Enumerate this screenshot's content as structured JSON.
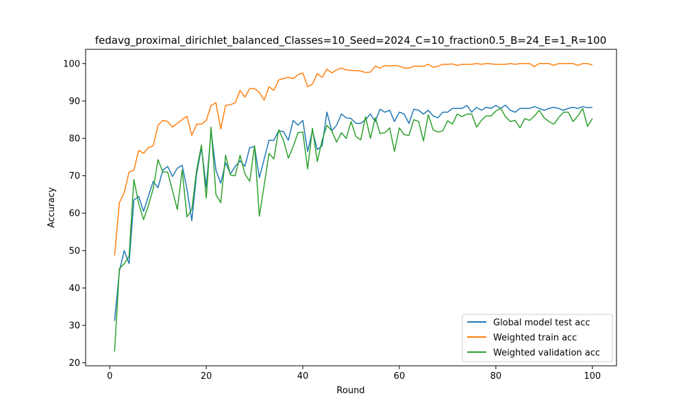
{
  "chart_data": {
    "type": "line",
    "title": "fedavg_proximal_dirichlet_balanced_Classes=10_Seed=2024_C=10_fraction0.5_B=24_E=1_R=100",
    "xlabel": "Round",
    "ylabel": "Accuracy",
    "xlim": [
      -5,
      105
    ],
    "ylim": [
      19.2,
      103.8
    ],
    "xticks": [
      0,
      20,
      40,
      60,
      80,
      100
    ],
    "yticks": [
      20,
      30,
      40,
      50,
      60,
      70,
      80,
      90,
      100
    ],
    "grid": false,
    "legend_position": "lower-right",
    "x": [
      1,
      2,
      3,
      4,
      5,
      6,
      7,
      8,
      9,
      10,
      11,
      12,
      13,
      14,
      15,
      16,
      17,
      18,
      19,
      20,
      21,
      22,
      23,
      24,
      25,
      26,
      27,
      28,
      29,
      30,
      31,
      32,
      33,
      34,
      35,
      36,
      37,
      38,
      39,
      40,
      41,
      42,
      43,
      44,
      45,
      46,
      47,
      48,
      49,
      50,
      51,
      52,
      53,
      54,
      55,
      56,
      57,
      58,
      59,
      60,
      61,
      62,
      63,
      64,
      65,
      66,
      67,
      68,
      69,
      70,
      71,
      72,
      73,
      74,
      75,
      76,
      77,
      78,
      79,
      80,
      81,
      82,
      83,
      84,
      85,
      86,
      87,
      88,
      89,
      90,
      91,
      92,
      93,
      94,
      95,
      96,
      97,
      98,
      99,
      100
    ],
    "series": [
      {
        "name": "Global model test acc",
        "color": "#1f77b4",
        "values": [
          31.2,
          44.5,
          50.0,
          46.5,
          63.5,
          64.5,
          60.5,
          64.5,
          68.5,
          66.8,
          71.5,
          72.5,
          69.8,
          72.0,
          72.8,
          66.5,
          58.0,
          70.5,
          77.5,
          67.0,
          82.0,
          71.5,
          68.0,
          73.5,
          70.5,
          72.5,
          74.0,
          72.5,
          77.5,
          77.8,
          69.5,
          74.5,
          79.5,
          79.5,
          82.0,
          81.8,
          79.5,
          84.8,
          83.5,
          84.8,
          76.5,
          82.0,
          77.0,
          78.0,
          87.0,
          82.0,
          83.5,
          86.5,
          85.5,
          85.3,
          84.0,
          84.0,
          85.0,
          86.5,
          84.5,
          87.8,
          87.0,
          87.5,
          84.5,
          87.0,
          86.5,
          84.0,
          87.8,
          87.5,
          86.5,
          87.5,
          86.0,
          85.5,
          87.0,
          87.0,
          88.0,
          88.0,
          88.0,
          88.8,
          87.0,
          88.3,
          87.5,
          88.3,
          88.0,
          88.8,
          88.0,
          88.9,
          87.5,
          87.0,
          88.0,
          88.0,
          88.0,
          88.5,
          88.0,
          87.5,
          88.0,
          88.3,
          88.0,
          87.5,
          88.0,
          88.3,
          88.0,
          88.5,
          88.2,
          88.3
        ]
      },
      {
        "name": "Weighted train acc",
        "color": "#ff7f0e",
        "values": [
          48.7,
          62.8,
          65.5,
          71.0,
          71.5,
          76.8,
          76.0,
          77.5,
          78.0,
          83.5,
          84.8,
          84.5,
          83.0,
          84.0,
          85.0,
          85.9,
          80.8,
          83.8,
          83.8,
          84.8,
          88.8,
          89.5,
          82.5,
          88.8,
          89.0,
          89.5,
          92.8,
          91.0,
          93.3,
          93.3,
          92.3,
          90.2,
          93.8,
          92.8,
          95.6,
          96.0,
          96.3,
          96.0,
          97.0,
          97.5,
          93.8,
          94.5,
          97.3,
          96.3,
          98.5,
          97.5,
          98.3,
          98.8,
          98.3,
          98.2,
          98.1,
          98.0,
          97.6,
          97.7,
          99.3,
          98.8,
          99.5,
          99.3,
          99.5,
          99.3,
          98.8,
          98.8,
          99.3,
          99.3,
          99.3,
          99.8,
          99.0,
          99.3,
          99.8,
          99.8,
          99.9,
          99.5,
          99.8,
          99.8,
          99.8,
          100.0,
          99.8,
          100.0,
          99.9,
          99.8,
          99.8,
          99.8,
          100.0,
          99.8,
          100.0,
          100.0,
          100.0,
          99.2,
          100.0,
          100.0,
          100.0,
          99.5,
          100.0,
          100.0,
          100.0,
          100.0,
          99.5,
          100.0,
          100.0,
          99.6
        ]
      },
      {
        "name": "Weighted validation acc",
        "color": "#2ca02c",
        "values": [
          23.0,
          45.2,
          46.5,
          48.5,
          69.0,
          62.5,
          58.3,
          62.0,
          66.5,
          74.3,
          71.0,
          71.0,
          66.0,
          61.0,
          71.5,
          59.0,
          61.0,
          71.5,
          78.2,
          64.0,
          83.0,
          65.0,
          62.8,
          75.5,
          70.2,
          70.0,
          75.5,
          70.5,
          68.5,
          78.0,
          59.2,
          67.5,
          76.0,
          74.5,
          82.3,
          79.5,
          74.7,
          77.8,
          81.5,
          81.7,
          71.8,
          82.7,
          73.8,
          79.5,
          83.5,
          82.0,
          79.0,
          81.5,
          80.0,
          84.5,
          80.5,
          79.6,
          85.8,
          80.0,
          85.5,
          81.3,
          81.5,
          82.8,
          76.5,
          82.8,
          81.0,
          80.8,
          85.0,
          84.5,
          79.3,
          86.3,
          82.3,
          81.7,
          82.0,
          84.7,
          83.8,
          86.5,
          85.8,
          86.5,
          86.5,
          83.0,
          84.8,
          86.0,
          86.0,
          87.3,
          88.0,
          85.8,
          84.5,
          84.8,
          82.8,
          85.3,
          84.8,
          86.0,
          87.5,
          85.5,
          84.5,
          83.8,
          85.5,
          87.0,
          87.0,
          84.5,
          86.0,
          88.0,
          83.2,
          85.3
        ]
      }
    ]
  }
}
